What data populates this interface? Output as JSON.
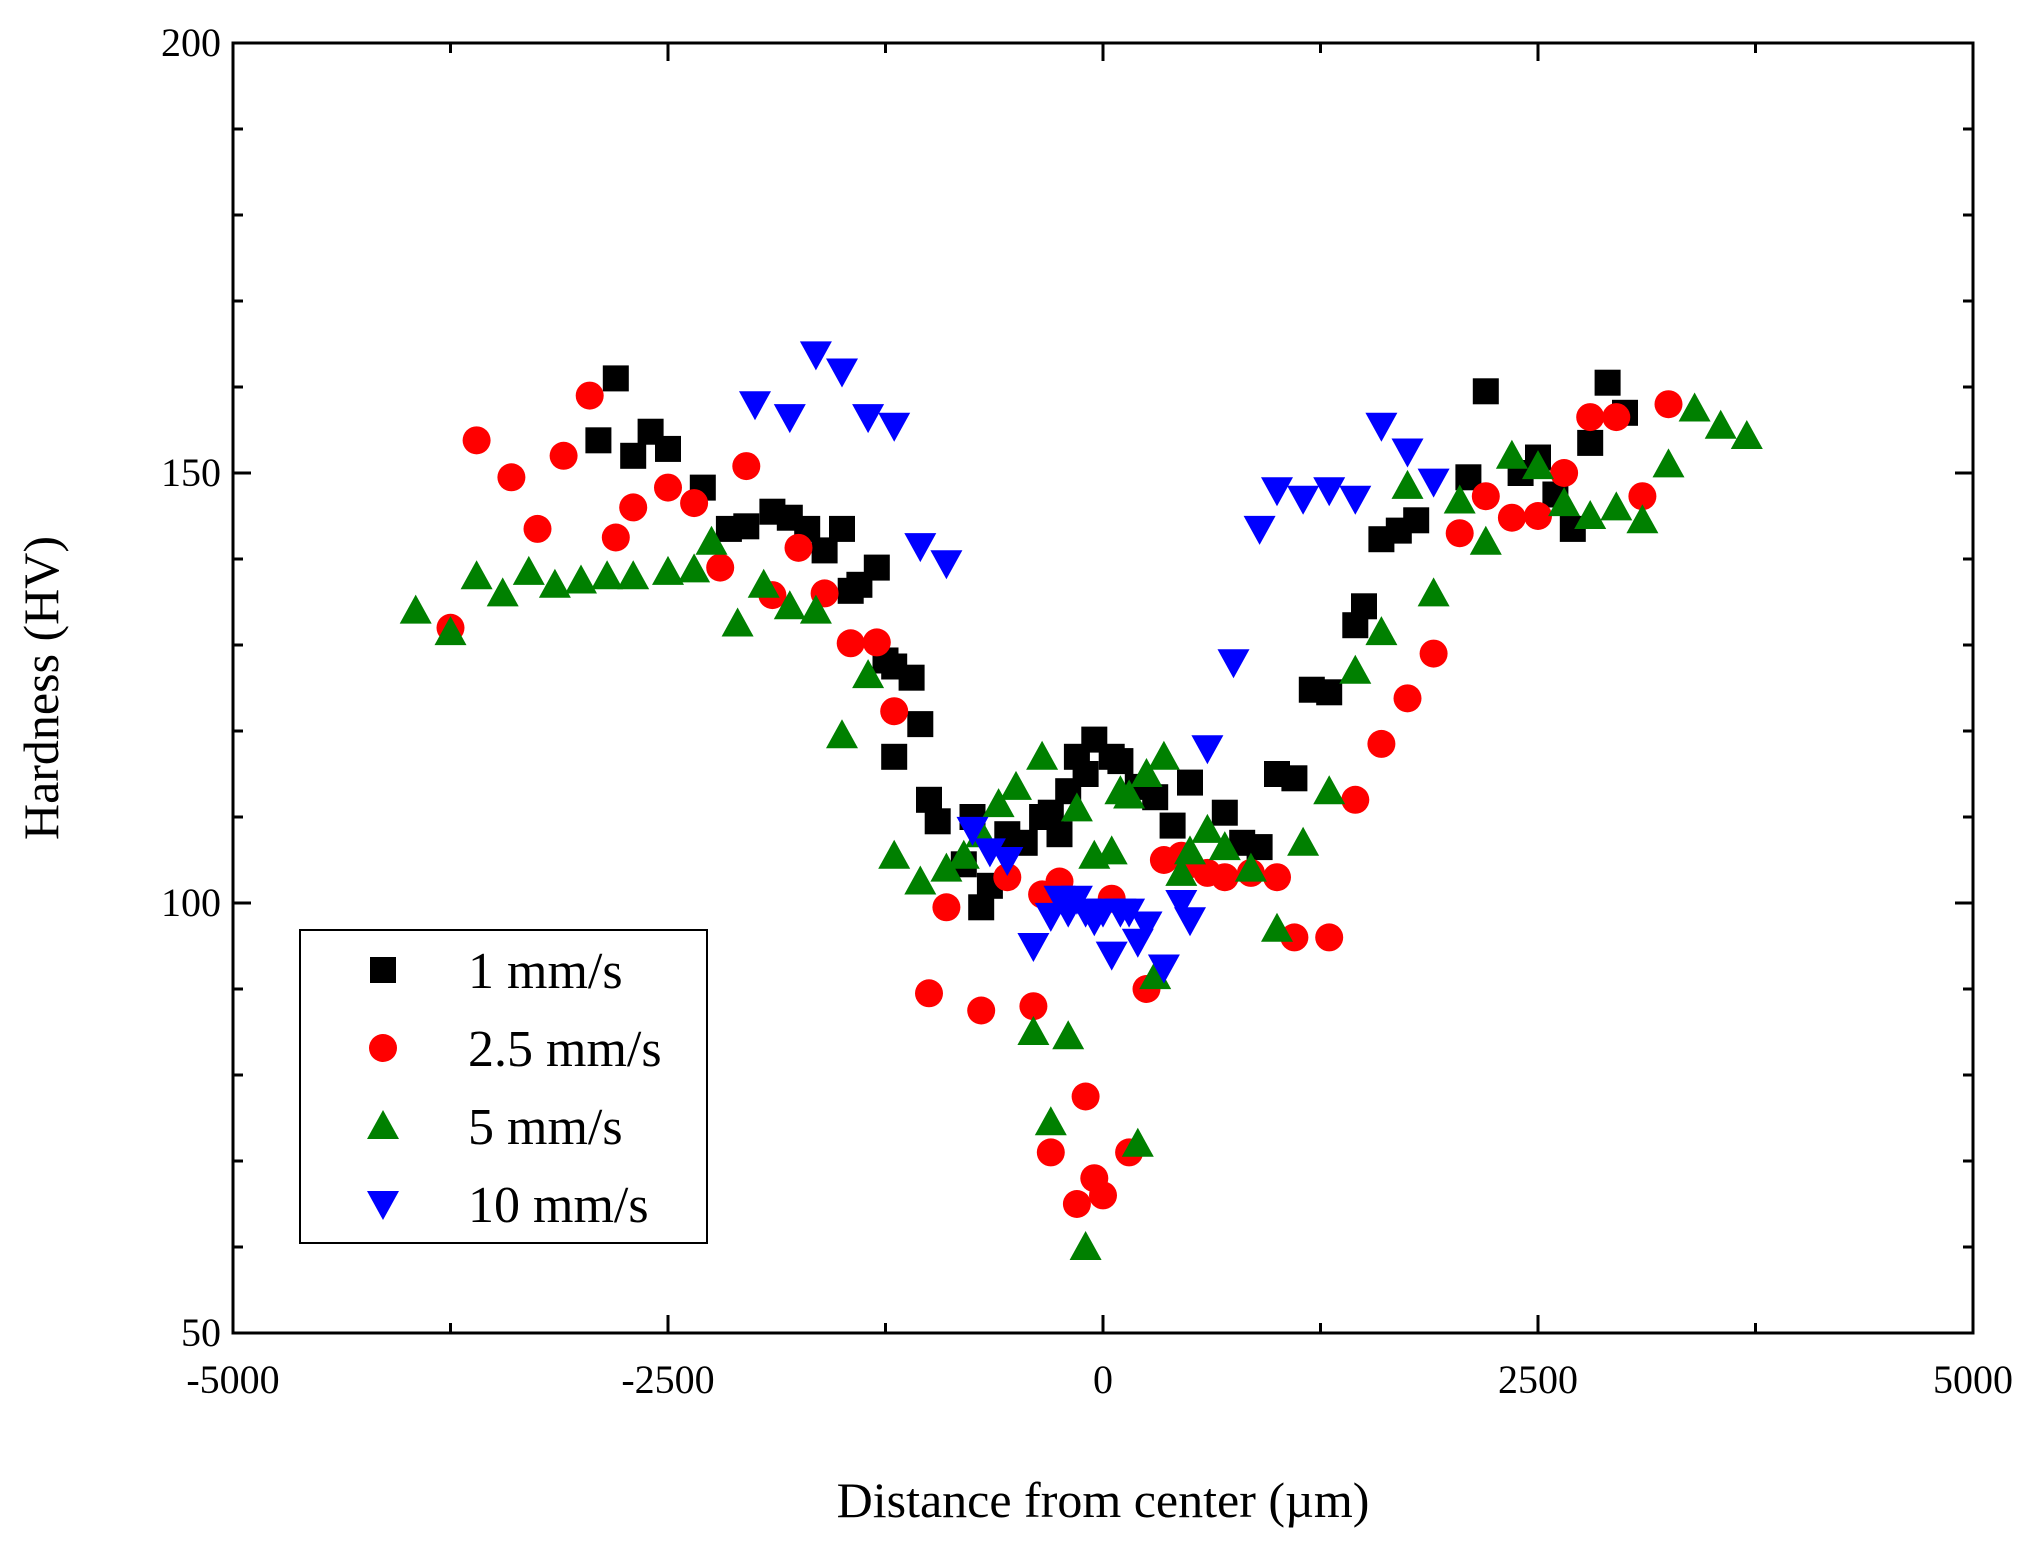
{
  "chart_data": {
    "type": "scatter",
    "title": "",
    "xlabel": "Distance from center (µm)",
    "ylabel": "Hardness (HV)",
    "xlim": [
      -5000,
      5000
    ],
    "ylim": [
      50,
      200
    ],
    "x_ticks": [
      -5000,
      -2500,
      0,
      2500,
      5000
    ],
    "x_tick_labels": [
      "-5000",
      "-2500",
      "0",
      "2500",
      "5000"
    ],
    "y_ticks": [
      50,
      100,
      150,
      200
    ],
    "y_tick_labels": [
      "50",
      "100",
      "150",
      "200"
    ],
    "legend_position": "bottom-left",
    "grid": false,
    "series": [
      {
        "name": "1 mm/s",
        "marker": "square",
        "color": "#000000",
        "points": [
          [
            -2800,
            161
          ],
          [
            -2900,
            153.8
          ],
          [
            -2700,
            152
          ],
          [
            -2600,
            154.8
          ],
          [
            -2500,
            152.8
          ],
          [
            -2300,
            148.3
          ],
          [
            -2150,
            143.5
          ],
          [
            -2050,
            143.8
          ],
          [
            -1900,
            145.5
          ],
          [
            -1800,
            144.8
          ],
          [
            -1700,
            143.5
          ],
          [
            -1600,
            141
          ],
          [
            -1500,
            143.5
          ],
          [
            -1450,
            136.3
          ],
          [
            -1400,
            137
          ],
          [
            -1300,
            139
          ],
          [
            -1250,
            128.2
          ],
          [
            -1200,
            127.5
          ],
          [
            -1100,
            126.2
          ],
          [
            -1050,
            120.8
          ],
          [
            -1200,
            117
          ],
          [
            -1000,
            112
          ],
          [
            -950,
            109.5
          ],
          [
            -800,
            104.5
          ],
          [
            -750,
            110
          ],
          [
            -700,
            99.5
          ],
          [
            -650,
            102
          ],
          [
            -550,
            108
          ],
          [
            -450,
            107
          ],
          [
            -350,
            110
          ],
          [
            -300,
            110.5
          ],
          [
            -250,
            108
          ],
          [
            -200,
            113
          ],
          [
            -150,
            117
          ],
          [
            -100,
            115
          ],
          [
            -50,
            119
          ],
          [
            50,
            117
          ],
          [
            100,
            116.5
          ],
          [
            200,
            113.5
          ],
          [
            300,
            112.3
          ],
          [
            400,
            109
          ],
          [
            500,
            114
          ],
          [
            700,
            110.5
          ],
          [
            800,
            107
          ],
          [
            900,
            106.5
          ],
          [
            1000,
            115
          ],
          [
            1100,
            114.5
          ],
          [
            1200,
            124.8
          ],
          [
            1300,
            124.5
          ],
          [
            1450,
            132.3
          ],
          [
            1500,
            134.5
          ],
          [
            1600,
            142.3
          ],
          [
            1700,
            143.3
          ],
          [
            1800,
            144.5
          ],
          [
            2100,
            149.5
          ],
          [
            2200,
            159.5
          ],
          [
            2400,
            150
          ],
          [
            2500,
            151.8
          ],
          [
            2600,
            147.5
          ],
          [
            2700,
            143.5
          ],
          [
            2800,
            153.5
          ],
          [
            2900,
            160.5
          ],
          [
            3000,
            157
          ]
        ]
      },
      {
        "name": "2.5 mm/s",
        "marker": "circle",
        "color": "#ff0000",
        "points": [
          [
            -3750,
            132
          ],
          [
            -3600,
            153.8
          ],
          [
            -3400,
            149.5
          ],
          [
            -3250,
            143.5
          ],
          [
            -3100,
            152
          ],
          [
            -2950,
            159
          ],
          [
            -2800,
            142.5
          ],
          [
            -2700,
            146
          ],
          [
            -2500,
            148.3
          ],
          [
            -2350,
            146.5
          ],
          [
            -2200,
            139
          ],
          [
            -2050,
            150.8
          ],
          [
            -1900,
            135.8
          ],
          [
            -1750,
            141.3
          ],
          [
            -1600,
            136
          ],
          [
            -1450,
            130.2
          ],
          [
            -1300,
            130.3
          ],
          [
            -1200,
            122.3
          ],
          [
            -1000,
            89.5
          ],
          [
            -900,
            99.5
          ],
          [
            -700,
            87.5
          ],
          [
            -550,
            103
          ],
          [
            -400,
            88
          ],
          [
            -350,
            101
          ],
          [
            -300,
            71
          ],
          [
            -250,
            102.5
          ],
          [
            -150,
            65
          ],
          [
            -100,
            77.5
          ],
          [
            -50,
            68
          ],
          [
            0,
            66
          ],
          [
            50,
            100.5
          ],
          [
            150,
            71
          ],
          [
            250,
            90
          ],
          [
            350,
            105
          ],
          [
            450,
            105.5
          ],
          [
            500,
            104.5
          ],
          [
            600,
            103.5
          ],
          [
            700,
            103
          ],
          [
            850,
            103.5
          ],
          [
            1000,
            103
          ],
          [
            1100,
            96
          ],
          [
            1300,
            96
          ],
          [
            1450,
            112
          ],
          [
            1600,
            118.5
          ],
          [
            1750,
            123.8
          ],
          [
            1900,
            129
          ],
          [
            2050,
            143
          ],
          [
            2200,
            147.3
          ],
          [
            2350,
            144.8
          ],
          [
            2500,
            145
          ],
          [
            2650,
            150
          ],
          [
            2800,
            156.5
          ],
          [
            2950,
            156.5
          ],
          [
            3100,
            147.3
          ],
          [
            3250,
            158
          ]
        ]
      },
      {
        "name": "5 mm/s",
        "marker": "triangle-up",
        "color": "#008000",
        "points": [
          [
            -3950,
            134
          ],
          [
            -3750,
            131.5
          ],
          [
            -3600,
            138
          ],
          [
            -3450,
            136
          ],
          [
            -3300,
            138.5
          ],
          [
            -3150,
            137
          ],
          [
            -3000,
            137.5
          ],
          [
            -2850,
            138
          ],
          [
            -2700,
            138
          ],
          [
            -2500,
            138.5
          ],
          [
            -2350,
            138.8
          ],
          [
            -2250,
            142
          ],
          [
            -2100,
            132.5
          ],
          [
            -1950,
            137
          ],
          [
            -1800,
            134.5
          ],
          [
            -1650,
            134
          ],
          [
            -1500,
            119.5
          ],
          [
            -1350,
            126.5
          ],
          [
            -1200,
            105.5
          ],
          [
            -1050,
            102.5
          ],
          [
            -900,
            104
          ],
          [
            -800,
            105.5
          ],
          [
            -700,
            108
          ],
          [
            -600,
            111.5
          ],
          [
            -500,
            113.5
          ],
          [
            -400,
            85
          ],
          [
            -350,
            117
          ],
          [
            -300,
            74.5
          ],
          [
            -200,
            84.5
          ],
          [
            -150,
            111
          ],
          [
            -100,
            60
          ],
          [
            -50,
            105.5
          ],
          [
            50,
            106
          ],
          [
            100,
            113
          ],
          [
            150,
            112.5
          ],
          [
            200,
            72
          ],
          [
            250,
            115
          ],
          [
            300,
            91.5
          ],
          [
            350,
            117
          ],
          [
            450,
            103.5
          ],
          [
            500,
            106
          ],
          [
            600,
            108.5
          ],
          [
            700,
            106.5
          ],
          [
            850,
            104
          ],
          [
            1000,
            97
          ],
          [
            1150,
            107
          ],
          [
            1300,
            113
          ],
          [
            1450,
            127
          ],
          [
            1600,
            131.5
          ],
          [
            1750,
            148.5
          ],
          [
            1900,
            136
          ],
          [
            2050,
            146.8
          ],
          [
            2200,
            142
          ],
          [
            2350,
            152
          ],
          [
            2500,
            150.8
          ],
          [
            2650,
            146.5
          ],
          [
            2800,
            145
          ],
          [
            2950,
            146
          ],
          [
            3100,
            144.5
          ],
          [
            3250,
            151
          ],
          [
            3400,
            157.5
          ],
          [
            3550,
            155.5
          ],
          [
            3700,
            154.3
          ]
        ]
      },
      {
        "name": "10 mm/s",
        "marker": "triangle-down",
        "color": "#0000ff",
        "points": [
          [
            -2000,
            158
          ],
          [
            -1800,
            156.5
          ],
          [
            -1650,
            163.8
          ],
          [
            -1500,
            161.8
          ],
          [
            -1350,
            156.5
          ],
          [
            -1200,
            155.5
          ],
          [
            -1050,
            141.5
          ],
          [
            -900,
            139.5
          ],
          [
            -750,
            108.5
          ],
          [
            -650,
            106
          ],
          [
            -550,
            105
          ],
          [
            -400,
            95
          ],
          [
            -300,
            98.5
          ],
          [
            -250,
            100.5
          ],
          [
            -200,
            99
          ],
          [
            -150,
            100.5
          ],
          [
            -100,
            99
          ],
          [
            -50,
            98
          ],
          [
            0,
            99
          ],
          [
            50,
            94
          ],
          [
            100,
            99
          ],
          [
            150,
            99
          ],
          [
            200,
            95.5
          ],
          [
            250,
            97.5
          ],
          [
            350,
            92.5
          ],
          [
            450,
            100
          ],
          [
            500,
            98
          ],
          [
            600,
            118
          ],
          [
            750,
            128
          ],
          [
            900,
            143.5
          ],
          [
            1000,
            148
          ],
          [
            1150,
            147
          ],
          [
            1300,
            148
          ],
          [
            1450,
            147
          ],
          [
            1600,
            155.5
          ],
          [
            1750,
            152.5
          ],
          [
            1900,
            149
          ]
        ]
      }
    ]
  }
}
